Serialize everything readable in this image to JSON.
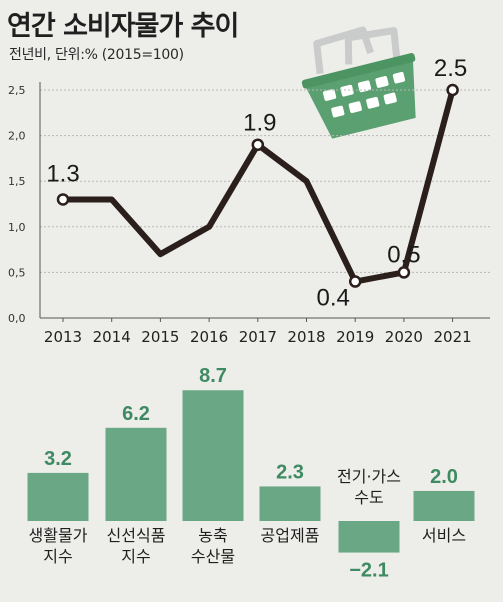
{
  "title": "연간 소비자물가 추이",
  "subtitle": "전년비, 단위:% (2015=100)",
  "colors": {
    "background": "#ededea",
    "line": "#2b1f1c",
    "bar": "#6aa784",
    "bar_label": "#3e8a62",
    "basket": "#5aa070",
    "basket_handle": "#c9cccb"
  },
  "icon": "shopping-basket-icon",
  "chart_data": [
    {
      "type": "line",
      "x": [
        "2013",
        "2014",
        "2015",
        "2016",
        "2017",
        "2018",
        "2019",
        "2020",
        "2021"
      ],
      "values": [
        1.3,
        1.3,
        0.7,
        1.0,
        1.9,
        1.5,
        0.4,
        0.5,
        2.5
      ],
      "labeled": [
        {
          "year": "2013",
          "label": "1.3"
        },
        {
          "year": "2017",
          "label": "1.9"
        },
        {
          "year": "2019",
          "label": "0.4"
        },
        {
          "year": "2020",
          "label": "0.5"
        },
        {
          "year": "2021",
          "label": "2.5"
        }
      ],
      "yticks": [
        "0,0",
        "0,5",
        "1,0",
        "1,5",
        "2,0",
        "2,5"
      ],
      "ylim": [
        0,
        2.5
      ],
      "grid": true
    },
    {
      "type": "bar",
      "categories": [
        [
          "생활물가",
          "지수"
        ],
        [
          "신선식품",
          "지수"
        ],
        [
          "농축",
          "수산물"
        ],
        [
          "공업제품"
        ],
        [
          "전기·가스",
          "수도"
        ],
        [
          "서비스"
        ]
      ],
      "values": [
        3.2,
        6.2,
        8.7,
        2.3,
        -2.1,
        2.0
      ],
      "labels": [
        "3.2",
        "6.2",
        "8.7",
        "2.3",
        "−2.1",
        "2.0"
      ]
    }
  ]
}
